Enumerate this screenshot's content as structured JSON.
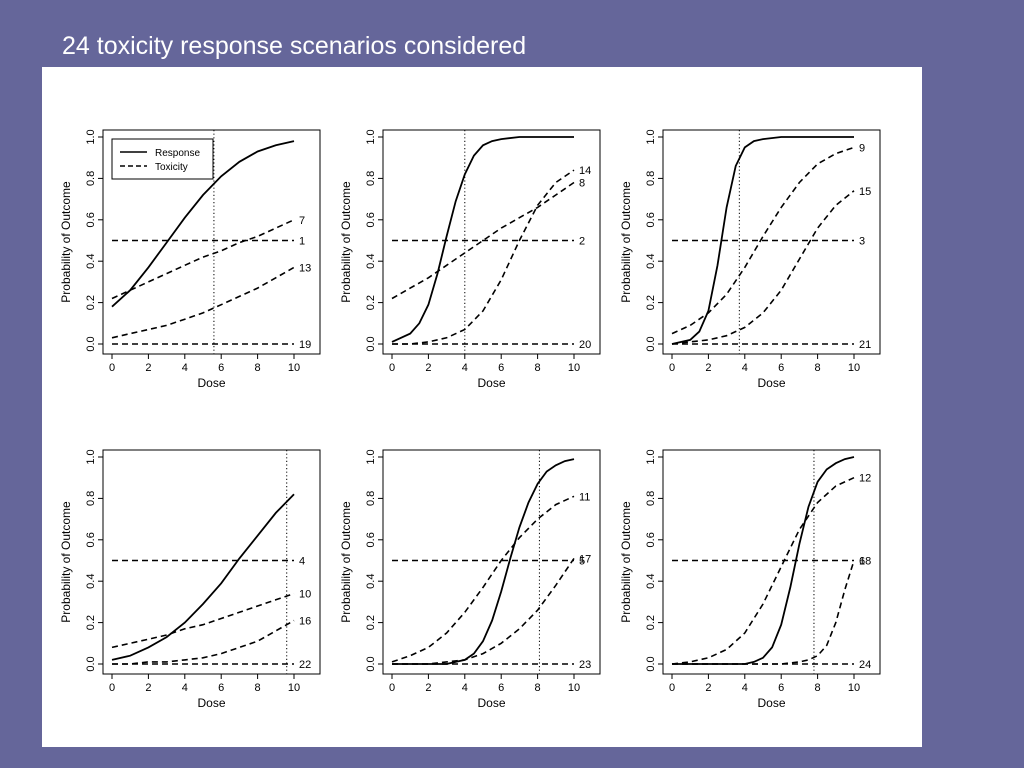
{
  "slide": {
    "title": "24 toxicity response scenarios considered",
    "background_color": "#65669a",
    "panel_color": "#ffffff"
  },
  "legend": {
    "placement": "top-left of first plot",
    "entries": [
      {
        "label": "Response",
        "style": "solid"
      },
      {
        "label": "Toxicity",
        "style": "dashed"
      }
    ]
  },
  "chart_data": [
    {
      "type": "line",
      "xlabel": "Dose",
      "ylabel": "Probability of Outcome",
      "xlim": [
        0,
        10
      ],
      "ylim": [
        0,
        1
      ],
      "xticks": [
        "0",
        "2",
        "4",
        "6",
        "8",
        "10"
      ],
      "yticks": [
        "0.0",
        "0.2",
        "0.4",
        "0.6",
        "0.8",
        "1.0"
      ],
      "reference_dose": 5.6,
      "response": {
        "x": [
          0,
          1,
          2,
          3,
          4,
          5,
          6,
          7,
          8,
          9,
          10
        ],
        "y": [
          0.18,
          0.26,
          0.37,
          0.49,
          0.61,
          0.72,
          0.81,
          0.88,
          0.93,
          0.96,
          0.98
        ]
      },
      "toxicity": [
        {
          "name": "7",
          "x": [
            0,
            1,
            2,
            3,
            4,
            5,
            6,
            7,
            8,
            9,
            10
          ],
          "y": [
            0.22,
            0.26,
            0.3,
            0.34,
            0.38,
            0.42,
            0.45,
            0.49,
            0.52,
            0.56,
            0.6
          ]
        },
        {
          "name": "1",
          "x": [
            0,
            1,
            2,
            3,
            4,
            5,
            6,
            7,
            8,
            9,
            10
          ],
          "y": [
            0.5,
            0.5,
            0.5,
            0.5,
            0.5,
            0.5,
            0.5,
            0.5,
            0.5,
            0.5,
            0.5
          ]
        },
        {
          "name": "13",
          "x": [
            0,
            1,
            2,
            3,
            4,
            5,
            6,
            7,
            8,
            9,
            10
          ],
          "y": [
            0.03,
            0.05,
            0.07,
            0.09,
            0.12,
            0.15,
            0.19,
            0.23,
            0.27,
            0.32,
            0.37
          ]
        },
        {
          "name": "19",
          "x": [
            0,
            1,
            2,
            3,
            4,
            5,
            6,
            7,
            8,
            9,
            10
          ],
          "y": [
            0.0,
            0.0,
            0.0,
            0.0,
            0.0,
            0.0,
            0.0,
            0.0,
            0.0,
            0.0,
            0.0
          ]
        }
      ]
    },
    {
      "type": "line",
      "xlabel": "Dose",
      "ylabel": "Probability of Outcome",
      "xlim": [
        0,
        10
      ],
      "ylim": [
        0,
        1
      ],
      "xticks": [
        "0",
        "2",
        "4",
        "6",
        "8",
        "10"
      ],
      "yticks": [
        "0.0",
        "0.2",
        "0.4",
        "0.6",
        "0.8",
        "1.0"
      ],
      "reference_dose": 4.0,
      "response": {
        "x": [
          0,
          1,
          1.5,
          2,
          2.5,
          3,
          3.5,
          4,
          4.5,
          5,
          5.5,
          6,
          7,
          8,
          9,
          10
        ],
        "y": [
          0.01,
          0.05,
          0.1,
          0.19,
          0.34,
          0.52,
          0.69,
          0.82,
          0.91,
          0.96,
          0.98,
          0.99,
          1.0,
          1.0,
          1.0,
          1.0
        ]
      },
      "toxicity": [
        {
          "name": "14",
          "x": [
            0,
            1,
            2,
            3,
            4,
            5,
            6,
            7,
            8,
            9,
            10
          ],
          "y": [
            0.0,
            0.0,
            0.01,
            0.03,
            0.07,
            0.16,
            0.31,
            0.5,
            0.67,
            0.78,
            0.84
          ]
        },
        {
          "name": "8",
          "x": [
            0,
            1,
            2,
            3,
            4,
            5,
            6,
            7,
            8,
            9,
            10
          ],
          "y": [
            0.22,
            0.27,
            0.32,
            0.38,
            0.44,
            0.5,
            0.56,
            0.61,
            0.66,
            0.72,
            0.78
          ]
        },
        {
          "name": "2",
          "x": [
            0,
            1,
            2,
            3,
            4,
            5,
            6,
            7,
            8,
            9,
            10
          ],
          "y": [
            0.5,
            0.5,
            0.5,
            0.5,
            0.5,
            0.5,
            0.5,
            0.5,
            0.5,
            0.5,
            0.5
          ]
        },
        {
          "name": "20",
          "x": [
            0,
            1,
            2,
            3,
            4,
            5,
            6,
            7,
            8,
            9,
            10
          ],
          "y": [
            0.0,
            0.0,
            0.0,
            0.0,
            0.0,
            0.0,
            0.0,
            0.0,
            0.0,
            0.0,
            0.0
          ]
        }
      ]
    },
    {
      "type": "line",
      "xlabel": "Dose",
      "ylabel": "Probability of Outcome",
      "xlim": [
        0,
        10
      ],
      "ylim": [
        0,
        1
      ],
      "xticks": [
        "0",
        "2",
        "4",
        "6",
        "8",
        "10"
      ],
      "yticks": [
        "0.0",
        "0.2",
        "0.4",
        "0.6",
        "0.8",
        "1.0"
      ],
      "reference_dose": 3.7,
      "response": {
        "x": [
          0,
          1,
          1.5,
          2,
          2.5,
          3,
          3.5,
          4,
          4.5,
          5,
          6,
          7,
          8,
          9,
          10
        ],
        "y": [
          0.0,
          0.02,
          0.06,
          0.16,
          0.38,
          0.66,
          0.86,
          0.95,
          0.98,
          0.99,
          1.0,
          1.0,
          1.0,
          1.0,
          1.0
        ]
      },
      "toxicity": [
        {
          "name": "9",
          "x": [
            0,
            1,
            2,
            3,
            4,
            5,
            6,
            7,
            8,
            9,
            10
          ],
          "y": [
            0.05,
            0.09,
            0.15,
            0.24,
            0.37,
            0.52,
            0.66,
            0.78,
            0.87,
            0.92,
            0.95
          ]
        },
        {
          "name": "15",
          "x": [
            0,
            1,
            2,
            3,
            4,
            5,
            6,
            7,
            8,
            9,
            10
          ],
          "y": [
            0.0,
            0.01,
            0.02,
            0.04,
            0.08,
            0.15,
            0.26,
            0.41,
            0.56,
            0.67,
            0.74
          ]
        },
        {
          "name": "3",
          "x": [
            0,
            1,
            2,
            3,
            4,
            5,
            6,
            7,
            8,
            9,
            10
          ],
          "y": [
            0.5,
            0.5,
            0.5,
            0.5,
            0.5,
            0.5,
            0.5,
            0.5,
            0.5,
            0.5,
            0.5
          ]
        },
        {
          "name": "21",
          "x": [
            0,
            1,
            2,
            3,
            4,
            5,
            6,
            7,
            8,
            9,
            10
          ],
          "y": [
            0.0,
            0.0,
            0.0,
            0.0,
            0.0,
            0.0,
            0.0,
            0.0,
            0.0,
            0.0,
            0.0
          ]
        }
      ]
    },
    {
      "type": "line",
      "xlabel": "Dose",
      "ylabel": "Probability of Outcome",
      "xlim": [
        0,
        10
      ],
      "ylim": [
        0,
        1
      ],
      "xticks": [
        "0",
        "2",
        "4",
        "6",
        "8",
        "10"
      ],
      "yticks": [
        "0.0",
        "0.2",
        "0.4",
        "0.6",
        "0.8",
        "1.0"
      ],
      "reference_dose": 9.6,
      "response": {
        "x": [
          0,
          1,
          2,
          3,
          4,
          5,
          6,
          7,
          8,
          9,
          10
        ],
        "y": [
          0.02,
          0.04,
          0.08,
          0.13,
          0.2,
          0.29,
          0.39,
          0.51,
          0.62,
          0.73,
          0.82
        ]
      },
      "toxicity": [
        {
          "name": "4",
          "x": [
            0,
            1,
            2,
            3,
            4,
            5,
            6,
            7,
            8,
            9,
            10
          ],
          "y": [
            0.5,
            0.5,
            0.5,
            0.5,
            0.5,
            0.5,
            0.5,
            0.5,
            0.5,
            0.5,
            0.5
          ]
        },
        {
          "name": "10",
          "x": [
            0,
            1,
            2,
            3,
            4,
            5,
            6,
            7,
            8,
            9,
            10
          ],
          "y": [
            0.08,
            0.1,
            0.12,
            0.14,
            0.17,
            0.19,
            0.22,
            0.25,
            0.28,
            0.31,
            0.34
          ]
        },
        {
          "name": "16",
          "x": [
            0,
            1,
            2,
            3,
            4,
            5,
            6,
            7,
            8,
            9,
            10
          ],
          "y": [
            0.0,
            0.0,
            0.01,
            0.01,
            0.02,
            0.03,
            0.05,
            0.08,
            0.11,
            0.16,
            0.21
          ]
        },
        {
          "name": "22",
          "x": [
            0,
            1,
            2,
            3,
            4,
            5,
            6,
            7,
            8,
            9,
            10
          ],
          "y": [
            0.0,
            0.0,
            0.0,
            0.0,
            0.0,
            0.0,
            0.0,
            0.0,
            0.0,
            0.0,
            0.0
          ]
        }
      ]
    },
    {
      "type": "line",
      "xlabel": "Dose",
      "ylabel": "Probability of Outcome",
      "xlim": [
        0,
        10
      ],
      "ylim": [
        0,
        1
      ],
      "xticks": [
        "0",
        "2",
        "4",
        "6",
        "8",
        "10"
      ],
      "yticks": [
        "0.0",
        "0.2",
        "0.4",
        "0.6",
        "0.8",
        "1.0"
      ],
      "reference_dose": 8.1,
      "response": {
        "x": [
          0,
          1,
          2,
          3,
          3.5,
          4,
          4.5,
          5,
          5.5,
          6,
          6.5,
          7,
          7.5,
          8,
          8.5,
          9,
          9.5,
          10
        ],
        "y": [
          0.0,
          0.0,
          0.0,
          0.0,
          0.01,
          0.02,
          0.05,
          0.11,
          0.21,
          0.35,
          0.51,
          0.66,
          0.78,
          0.87,
          0.93,
          0.96,
          0.98,
          0.99
        ]
      },
      "toxicity": [
        {
          "name": "11",
          "x": [
            0,
            1,
            2,
            3,
            4,
            5,
            6,
            7,
            8,
            9,
            10
          ],
          "y": [
            0.01,
            0.04,
            0.08,
            0.15,
            0.25,
            0.37,
            0.5,
            0.61,
            0.7,
            0.77,
            0.81
          ]
        },
        {
          "name": "5",
          "x": [
            0,
            1,
            2,
            3,
            4,
            5,
            6,
            7,
            8,
            9,
            10
          ],
          "y": [
            0.5,
            0.5,
            0.5,
            0.5,
            0.5,
            0.5,
            0.5,
            0.5,
            0.5,
            0.5,
            0.5
          ]
        },
        {
          "name": "17",
          "x": [
            0,
            1,
            2,
            3,
            4,
            5,
            6,
            7,
            8,
            9,
            10
          ],
          "y": [
            0.0,
            0.0,
            0.0,
            0.01,
            0.02,
            0.05,
            0.1,
            0.17,
            0.26,
            0.38,
            0.51
          ]
        },
        {
          "name": "23",
          "x": [
            0,
            1,
            2,
            3,
            4,
            5,
            6,
            7,
            8,
            9,
            10
          ],
          "y": [
            0.0,
            0.0,
            0.0,
            0.0,
            0.0,
            0.0,
            0.0,
            0.0,
            0.0,
            0.0,
            0.0
          ]
        }
      ]
    },
    {
      "type": "line",
      "xlabel": "Dose",
      "ylabel": "Probability of Outcome",
      "xlim": [
        0,
        10
      ],
      "ylim": [
        0,
        1
      ],
      "xticks": [
        "0",
        "2",
        "4",
        "6",
        "8",
        "10"
      ],
      "yticks": [
        "0.0",
        "0.2",
        "0.4",
        "0.6",
        "0.8",
        "1.0"
      ],
      "reference_dose": 7.8,
      "response": {
        "x": [
          0,
          1,
          2,
          3,
          4,
          4.5,
          5,
          5.5,
          6,
          6.5,
          7,
          7.5,
          8,
          8.5,
          9,
          9.5,
          10
        ],
        "y": [
          0.0,
          0.0,
          0.0,
          0.0,
          0.0,
          0.01,
          0.03,
          0.08,
          0.19,
          0.37,
          0.58,
          0.76,
          0.88,
          0.94,
          0.97,
          0.99,
          1.0
        ]
      },
      "toxicity": [
        {
          "name": "12",
          "x": [
            0,
            1,
            2,
            3,
            4,
            5,
            6,
            7,
            8,
            9,
            10
          ],
          "y": [
            0.0,
            0.01,
            0.03,
            0.07,
            0.15,
            0.29,
            0.47,
            0.65,
            0.78,
            0.86,
            0.9
          ]
        },
        {
          "name": "6",
          "x": [
            0,
            1,
            2,
            3,
            4,
            5,
            6,
            7,
            8,
            9,
            10
          ],
          "y": [
            0.5,
            0.5,
            0.5,
            0.5,
            0.5,
            0.5,
            0.5,
            0.5,
            0.5,
            0.5,
            0.5
          ]
        },
        {
          "name": "18",
          "x": [
            0,
            1,
            2,
            3,
            4,
            5,
            6,
            7,
            7.5,
            8,
            8.5,
            9,
            9.5,
            10
          ],
          "y": [
            0.0,
            0.0,
            0.0,
            0.0,
            0.0,
            0.0,
            0.0,
            0.01,
            0.02,
            0.04,
            0.09,
            0.2,
            0.36,
            0.5
          ]
        },
        {
          "name": "24",
          "x": [
            0,
            1,
            2,
            3,
            4,
            5,
            6,
            7,
            8,
            9,
            10
          ],
          "y": [
            0.0,
            0.0,
            0.0,
            0.0,
            0.0,
            0.0,
            0.0,
            0.0,
            0.0,
            0.0,
            0.0
          ]
        }
      ]
    }
  ]
}
